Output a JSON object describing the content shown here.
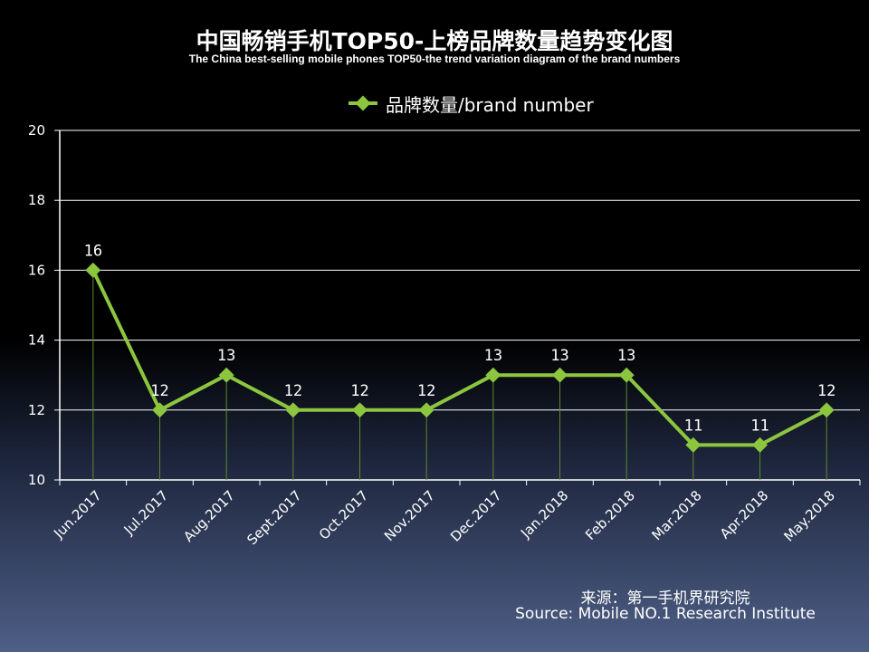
{
  "chart_data": {
    "type": "line",
    "title": "中国畅销手机TOP50-上榜品牌数量趋势变化图",
    "subtitle": "The China best-selling mobile phones TOP50-the trend variation diagram of the brand numbers",
    "categories": [
      "Jun.2017",
      "Jul.2017",
      "Aug.2017",
      "Sept.2017",
      "Oct.2017",
      "Nov.2017",
      "Dec.2017",
      "Jan.2018",
      "Feb.2018",
      "Mar.2018",
      "Apr.2018",
      "May.2018"
    ],
    "series": [
      {
        "name": "品牌数量/brand number",
        "values": [
          16,
          12,
          13,
          12,
          12,
          12,
          13,
          13,
          13,
          11,
          11,
          12
        ]
      }
    ],
    "ylim": [
      10,
      20
    ],
    "yticks": [
      10,
      12,
      14,
      16,
      18,
      20
    ],
    "grid": true,
    "legend_position": "top-center",
    "data_labels": true,
    "colors": {
      "line": "#8cc63f",
      "grid": "#ffffff",
      "drop_lines": "#5e8a2b"
    }
  },
  "source": {
    "cn": "来源：第一手机界研究院",
    "en": "Source: Mobile NO.1 Research Institute"
  }
}
